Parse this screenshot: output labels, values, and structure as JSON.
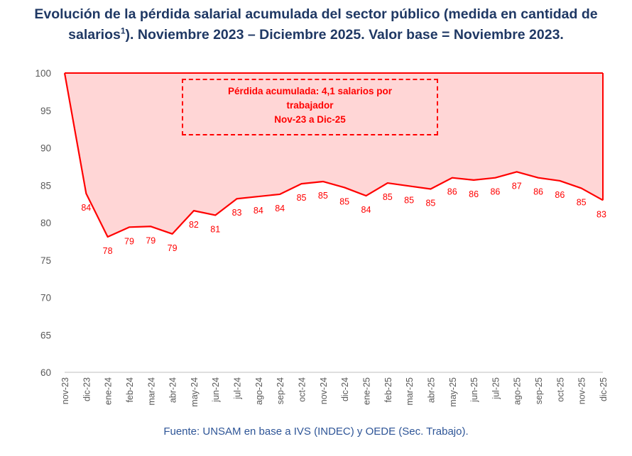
{
  "title_line1": "Evolución de la pérdida salarial acumulada del sector público (medida en cantidad de",
  "title_line2_pre": "salarios",
  "title_sup": "1",
  "title_line2_post": "). Noviembre 2023 – Diciembre 2025. Valor base = Noviembre 2023.",
  "annotation": {
    "line1": "Pérdida acumulada: 4,1 salarios por",
    "line2": "trabajador",
    "line3": "Nov-23 a Dic-25"
  },
  "source": "Fuente: UNSAM en base a IVS (INDEC) y OEDE (Sec. Trabajo).",
  "colors": {
    "line": "#ff0000",
    "area_fill": "#ffd6d6",
    "title": "#1f3864",
    "source": "#2e5597"
  },
  "chart_data": {
    "type": "area",
    "ylim": [
      60,
      100
    ],
    "yticks": [
      100,
      95,
      90,
      85,
      80,
      75,
      70,
      65,
      60
    ],
    "grid": false,
    "baseline": 100,
    "categories": [
      "nov-23",
      "dic-23",
      "ene-24",
      "feb-24",
      "mar-24",
      "abr-24",
      "may-24",
      "jun-24",
      "jul-24",
      "ago-24",
      "sep-24",
      "oct-24",
      "nov-24",
      "dic-24",
      "ene-25",
      "feb-25",
      "mar-25",
      "abr-25",
      "may-25",
      "jun-25",
      "jul-25",
      "ago-25",
      "sep-25",
      "oct-25",
      "nov-25",
      "dic-25"
    ],
    "values": [
      100,
      83.9,
      78.1,
      79.4,
      79.5,
      78.5,
      81.6,
      81.0,
      83.2,
      83.5,
      83.8,
      85.2,
      85.5,
      84.7,
      83.6,
      85.3,
      84.9,
      84.5,
      86.0,
      85.7,
      86.0,
      86.8,
      86.0,
      85.6,
      84.6,
      83.0
    ],
    "labels": [
      "",
      "84",
      "78",
      "79",
      "79",
      "79",
      "82",
      "81",
      "83",
      "84",
      "84",
      "85",
      "85",
      "85",
      "84",
      "85",
      "85",
      "85",
      "86",
      "86",
      "86",
      "87",
      "86",
      "86",
      "85",
      "83"
    ]
  }
}
